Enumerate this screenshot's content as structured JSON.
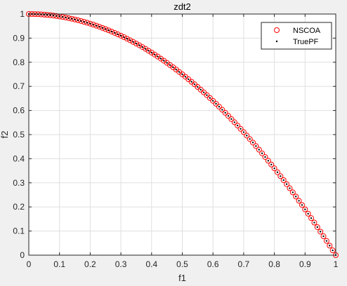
{
  "window": {
    "background": "#f0f0f0"
  },
  "chart_data": {
    "type": "scatter",
    "title": "zdt2",
    "xlabel": "f1",
    "ylabel": "f2",
    "xlim": [
      0,
      1
    ],
    "ylim": [
      0,
      1
    ],
    "xticks": [
      "0",
      "0.1",
      "0.2",
      "0.3",
      "0.4",
      "0.5",
      "0.6",
      "0.7",
      "0.8",
      "0.9",
      "1"
    ],
    "yticks": [
      "0",
      "0.1",
      "0.2",
      "0.3",
      "0.4",
      "0.5",
      "0.6",
      "0.7",
      "0.8",
      "0.9",
      "1"
    ],
    "grid": true,
    "legend_position": "top-right",
    "series": [
      {
        "name": "NSCOA",
        "marker": "circle-open",
        "color": "#ff0000",
        "x": [
          0,
          0.01,
          0.02,
          0.03,
          0.04,
          0.05,
          0.06,
          0.07,
          0.08,
          0.09,
          0.1,
          0.11,
          0.12,
          0.13,
          0.14,
          0.15,
          0.16,
          0.17,
          0.18,
          0.19,
          0.2,
          0.21,
          0.22,
          0.23,
          0.24,
          0.25,
          0.26,
          0.27,
          0.28,
          0.29,
          0.3,
          0.31,
          0.32,
          0.33,
          0.34,
          0.35,
          0.36,
          0.37,
          0.38,
          0.39,
          0.4,
          0.41,
          0.42,
          0.43,
          0.44,
          0.45,
          0.46,
          0.47,
          0.48,
          0.49,
          0.5,
          0.51,
          0.52,
          0.53,
          0.54,
          0.55,
          0.56,
          0.57,
          0.58,
          0.59,
          0.6,
          0.61,
          0.62,
          0.63,
          0.64,
          0.65,
          0.66,
          0.67,
          0.68,
          0.69,
          0.7,
          0.71,
          0.72,
          0.73,
          0.74,
          0.75,
          0.76,
          0.77,
          0.78,
          0.79,
          0.8,
          0.81,
          0.82,
          0.83,
          0.84,
          0.85,
          0.86,
          0.87,
          0.88,
          0.89,
          0.9,
          0.91,
          0.92,
          0.93,
          0.94,
          0.95,
          0.96,
          0.97,
          0.98,
          0.99,
          1
        ],
        "y": [
          1,
          0.9999,
          0.9996,
          0.9991,
          0.9984,
          0.9975,
          0.9964,
          0.9951,
          0.9936,
          0.9919,
          0.99,
          0.9879,
          0.9856,
          0.9831,
          0.9804,
          0.9775,
          0.9744,
          0.9711,
          0.9676,
          0.9639,
          0.96,
          0.9559,
          0.9516,
          0.9471,
          0.9424,
          0.9375,
          0.9324,
          0.9271,
          0.9216,
          0.9159,
          0.91,
          0.9039,
          0.8976,
          0.8911,
          0.8844,
          0.8775,
          0.8704,
          0.8631,
          0.8556,
          0.8479,
          0.84,
          0.8319,
          0.8236,
          0.8151,
          0.8064,
          0.7975,
          0.7884,
          0.7791,
          0.7696,
          0.7599,
          0.75,
          0.7399,
          0.7296,
          0.7191,
          0.7084,
          0.6975,
          0.6864,
          0.6751,
          0.6636,
          0.6519,
          0.64,
          0.6279,
          0.6156,
          0.6031,
          0.5904,
          0.5775,
          0.5644,
          0.5511,
          0.5376,
          0.5239,
          0.51,
          0.4959,
          0.4816,
          0.4671,
          0.4524,
          0.4375,
          0.4224,
          0.4071,
          0.3916,
          0.3759,
          0.36,
          0.3439,
          0.3276,
          0.3111,
          0.2944,
          0.2775,
          0.2604,
          0.2431,
          0.2256,
          0.2079,
          0.19,
          0.1719,
          0.1536,
          0.1351,
          0.1164,
          0.0975,
          0.0784,
          0.0591,
          0.0396,
          0.0199,
          0
        ]
      },
      {
        "name": "TruePF",
        "marker": "point",
        "color": "#000000",
        "x": [
          0,
          0.01,
          0.02,
          0.03,
          0.04,
          0.05,
          0.06,
          0.07,
          0.08,
          0.09,
          0.1,
          0.11,
          0.12,
          0.13,
          0.14,
          0.15,
          0.16,
          0.17,
          0.18,
          0.19,
          0.2,
          0.21,
          0.22,
          0.23,
          0.24,
          0.25,
          0.26,
          0.27,
          0.28,
          0.29,
          0.3,
          0.31,
          0.32,
          0.33,
          0.34,
          0.35,
          0.36,
          0.37,
          0.38,
          0.39,
          0.4,
          0.41,
          0.42,
          0.43,
          0.44,
          0.45,
          0.46,
          0.47,
          0.48,
          0.49,
          0.5,
          0.51,
          0.52,
          0.53,
          0.54,
          0.55,
          0.56,
          0.57,
          0.58,
          0.59,
          0.6,
          0.61,
          0.62,
          0.63,
          0.64,
          0.65,
          0.66,
          0.67,
          0.68,
          0.69,
          0.7,
          0.71,
          0.72,
          0.73,
          0.74,
          0.75,
          0.76,
          0.77,
          0.78,
          0.79,
          0.8,
          0.81,
          0.82,
          0.83,
          0.84,
          0.85,
          0.86,
          0.87,
          0.88,
          0.89,
          0.9,
          0.91,
          0.92,
          0.93,
          0.94,
          0.95,
          0.96,
          0.97,
          0.98,
          0.99,
          1
        ],
        "y": [
          1,
          0.9999,
          0.9996,
          0.9991,
          0.9984,
          0.9975,
          0.9964,
          0.9951,
          0.9936,
          0.9919,
          0.99,
          0.9879,
          0.9856,
          0.9831,
          0.9804,
          0.9775,
          0.9744,
          0.9711,
          0.9676,
          0.9639,
          0.96,
          0.9559,
          0.9516,
          0.9471,
          0.9424,
          0.9375,
          0.9324,
          0.9271,
          0.9216,
          0.9159,
          0.91,
          0.9039,
          0.8976,
          0.8911,
          0.8844,
          0.8775,
          0.8704,
          0.8631,
          0.8556,
          0.8479,
          0.84,
          0.8319,
          0.8236,
          0.8151,
          0.8064,
          0.7975,
          0.7884,
          0.7791,
          0.7696,
          0.7599,
          0.75,
          0.7399,
          0.7296,
          0.7191,
          0.7084,
          0.6975,
          0.6864,
          0.6751,
          0.6636,
          0.6519,
          0.64,
          0.6279,
          0.6156,
          0.6031,
          0.5904,
          0.5775,
          0.5644,
          0.5511,
          0.5376,
          0.5239,
          0.51,
          0.4959,
          0.4816,
          0.4671,
          0.4524,
          0.4375,
          0.4224,
          0.4071,
          0.3916,
          0.3759,
          0.36,
          0.3439,
          0.3276,
          0.3111,
          0.2944,
          0.2775,
          0.2604,
          0.2431,
          0.2256,
          0.2079,
          0.19,
          0.1719,
          0.1536,
          0.1351,
          0.1164,
          0.0975,
          0.0784,
          0.0591,
          0.0396,
          0.0199,
          0
        ]
      }
    ]
  }
}
